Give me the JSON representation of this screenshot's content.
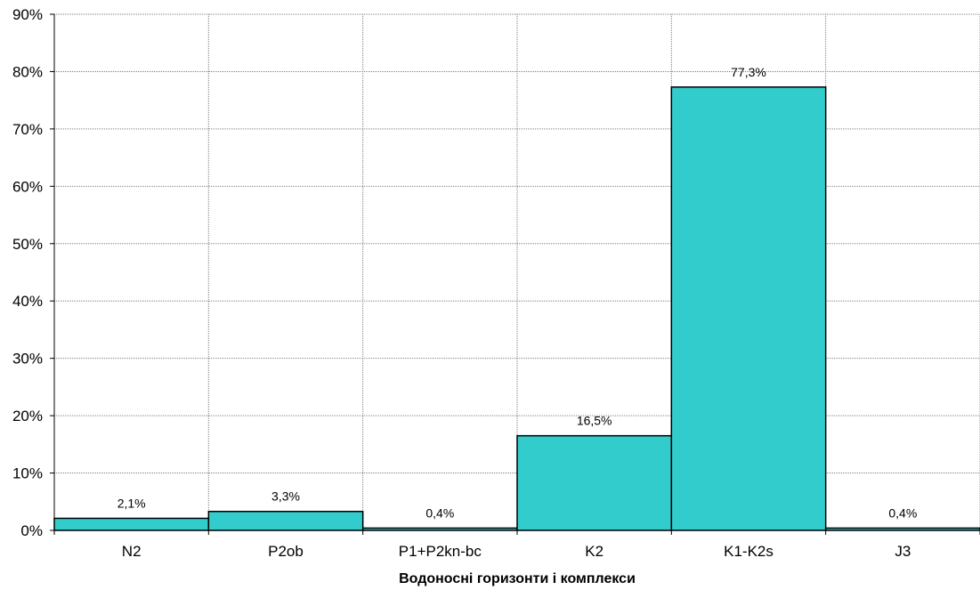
{
  "chart_data": {
    "type": "bar",
    "title": "",
    "xlabel": "Водоносні горизонти і комплекси",
    "ylabel": "",
    "categories": [
      "N2",
      "P2ob",
      "P1+P2kn-bc",
      "K2",
      "K1-K2s",
      "J3"
    ],
    "values": [
      2.1,
      3.3,
      0.4,
      16.5,
      77.3,
      0.4
    ],
    "data_labels": [
      "2,1%",
      "3,3%",
      "0,4%",
      "16,5%",
      "77,3%",
      "0,4%"
    ],
    "ylim": [
      0,
      90
    ],
    "yticks": [
      0,
      10,
      20,
      30,
      40,
      50,
      60,
      70,
      80,
      90
    ],
    "ytick_labels": [
      "0%",
      "10%",
      "20%",
      "30%",
      "40%",
      "50%",
      "60%",
      "70%",
      "80%",
      "90%"
    ],
    "grid": true,
    "legend": "none",
    "colors": {
      "bar_fill": "#33CCCC",
      "bar_stroke": "#000000",
      "grid": "#808080"
    }
  }
}
